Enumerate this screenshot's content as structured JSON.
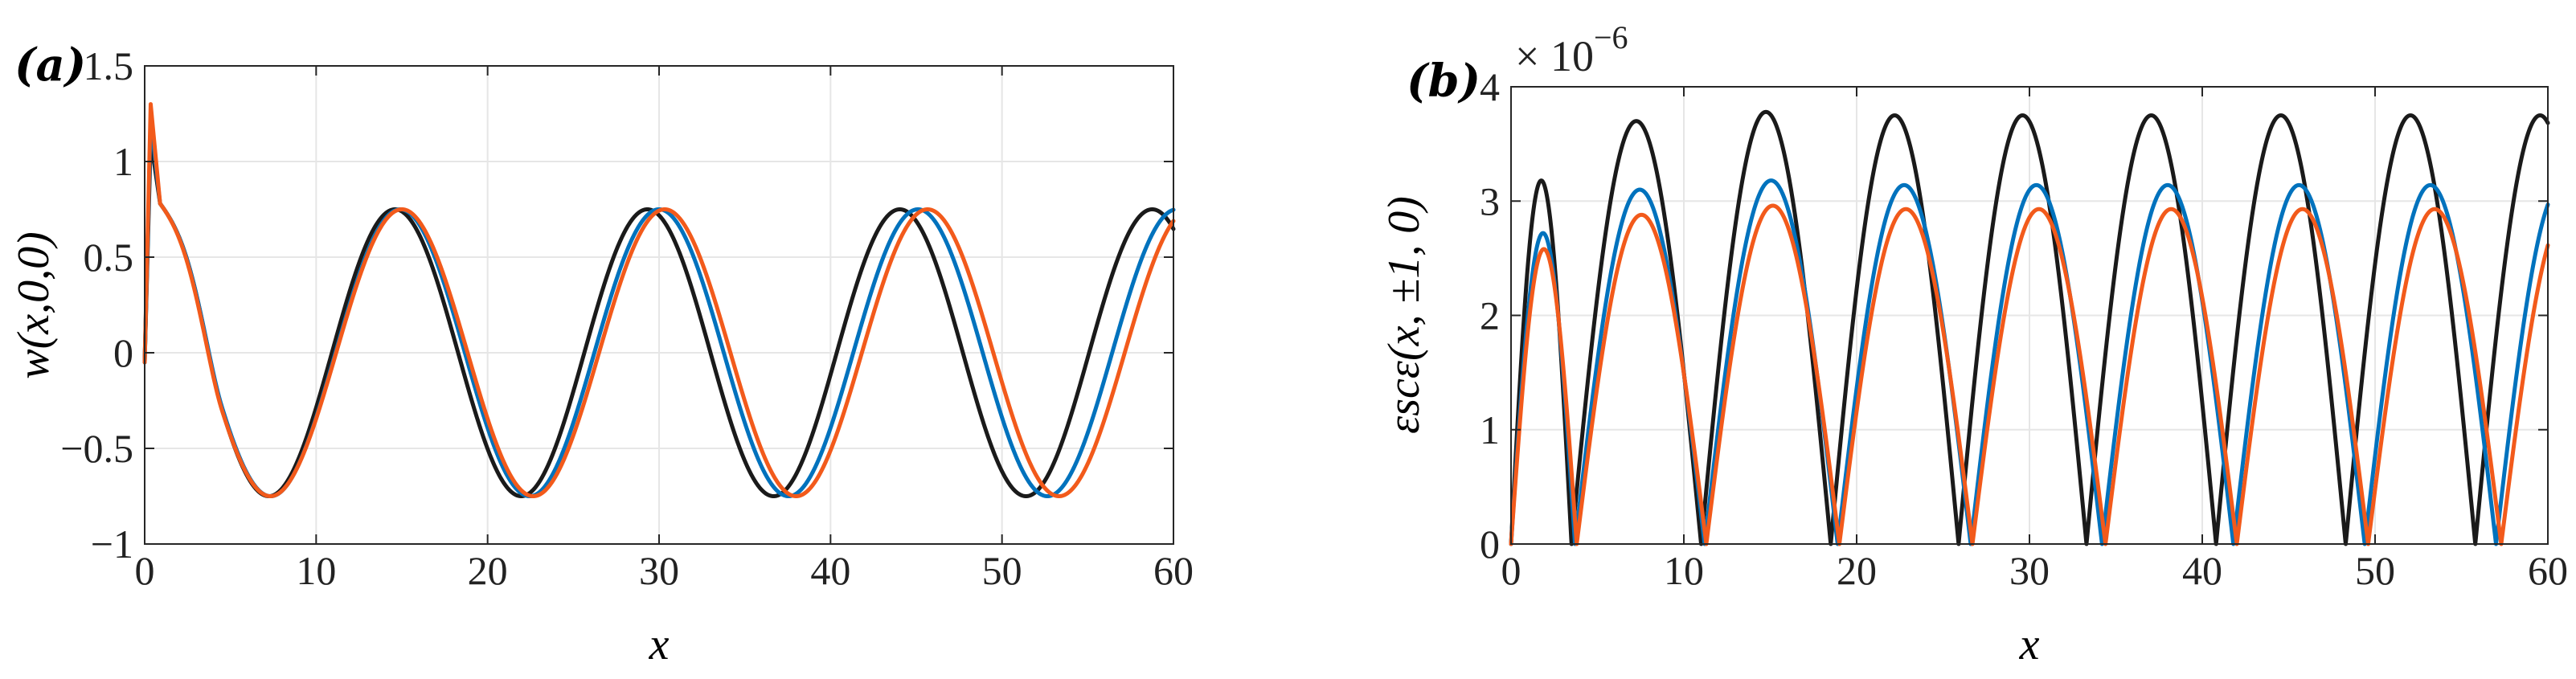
{
  "chart_data": [
    {
      "type": "line",
      "panel_label": "(a)",
      "xlabel": "x",
      "ylabel": "w(x,0,0)",
      "xlim": [
        0,
        60
      ],
      "ylim": [
        -1,
        1.5
      ],
      "xticks": [
        0,
        10,
        20,
        30,
        40,
        50,
        60
      ],
      "xtick_labels": [
        "0",
        "10",
        "20",
        "30",
        "40",
        "50",
        "60"
      ],
      "yticks": [
        -1,
        -0.5,
        0,
        0.5,
        1,
        1.5
      ],
      "ytick_labels": [
        "−1",
        "−0.5",
        "0",
        "0.5",
        "1",
        "1.5"
      ],
      "grid": true,
      "series": [
        {
          "name": "series-black",
          "color": "#1a1a1a",
          "amplitude": 0.75,
          "wavelength": 14.72,
          "peak_x": 14.6,
          "spike_peak": 1.12
        },
        {
          "name": "series-blue",
          "color": "#0072bd",
          "amplitude": 0.75,
          "wavelength": 15.1,
          "peak_x": 14.9,
          "spike_peak": 1.22
        },
        {
          "name": "series-orange",
          "color": "#f25a1b",
          "amplitude": 0.75,
          "wavelength": 15.33,
          "peak_x": 15.0,
          "spike_peak": 1.3
        }
      ]
    },
    {
      "type": "line",
      "panel_label": "(b)",
      "xlabel": "x",
      "ylabel": "εscε(x, ±1, 0)",
      "y_multiplier": "× 10",
      "y_multiplier_exponent": "−6",
      "xlim": [
        0,
        60
      ],
      "ylim": [
        0,
        4
      ],
      "xticks": [
        0,
        10,
        20,
        30,
        40,
        50,
        60
      ],
      "xtick_labels": [
        "0",
        "10",
        "20",
        "30",
        "40",
        "50",
        "60"
      ],
      "yticks": [
        0,
        1,
        2,
        3,
        4
      ],
      "ytick_labels": [
        "0",
        "1",
        "2",
        "3",
        "4"
      ],
      "grid": true,
      "series": [
        {
          "name": "series-black",
          "color": "#1a1a1a",
          "zeros": [
            0,
            3.5,
            11.0,
            18.5,
            25.9,
            33.3,
            40.8,
            48.3,
            55.8
          ],
          "peaks": [
            3.18,
            3.7,
            3.78,
            3.75,
            3.75,
            3.75,
            3.75,
            3.75
          ]
        },
        {
          "name": "series-blue",
          "color": "#0072bd",
          "zeros": [
            0,
            3.7,
            11.2,
            18.9,
            26.6,
            34.2,
            41.8,
            49.4,
            57.0
          ],
          "peaks": [
            2.72,
            3.1,
            3.18,
            3.14,
            3.14,
            3.14,
            3.14,
            3.14
          ]
        },
        {
          "name": "series-orange",
          "color": "#f25a1b",
          "zeros": [
            0,
            3.8,
            11.3,
            19.0,
            26.7,
            34.4,
            42.0,
            49.6,
            57.3
          ],
          "peaks": [
            2.58,
            2.88,
            2.96,
            2.93,
            2.93,
            2.93,
            2.93,
            2.93
          ]
        }
      ]
    }
  ]
}
